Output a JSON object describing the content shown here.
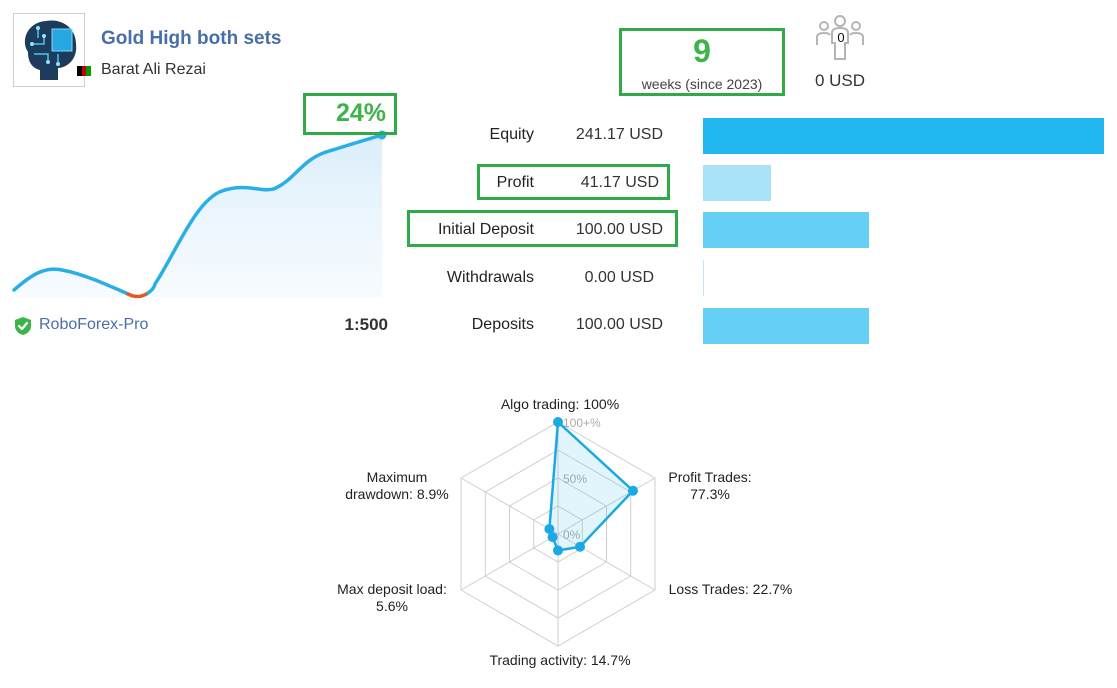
{
  "signal": {
    "title": "Gold High both sets",
    "author": "Barat Ali Rezai",
    "author_flag": "afghanistan-flag"
  },
  "weeks": {
    "value": "9",
    "caption": "weeks (since 2023)"
  },
  "subscribers": {
    "count": "0",
    "amount": "0 USD",
    "icon": "subscribers-icon"
  },
  "growth": {
    "percent_label": "24%",
    "line_color": "#29aee6",
    "drawdown_color": "#e05a2a"
  },
  "broker": {
    "name": "RoboForex-Pro",
    "leverage": "1:500",
    "icon": "verified-shield-icon"
  },
  "stats": [
    {
      "label": "Equity",
      "value": "241.17 USD",
      "amount": 241.17,
      "color": "#20b8ee",
      "highlight": false
    },
    {
      "label": "Profit",
      "value": "41.17 USD",
      "amount": 41.17,
      "color": "#a8e3f8",
      "highlight": true
    },
    {
      "label": "Initial Deposit",
      "value": "100.00 USD",
      "amount": 100.0,
      "color": "#66cff5",
      "highlight": true
    },
    {
      "label": "Withdrawals",
      "value": "0.00 USD",
      "amount": 0.0,
      "color": "#bfe9f9",
      "highlight": false
    },
    {
      "label": "Deposits",
      "value": "100.00 USD",
      "amount": 100.0,
      "color": "#66cff5",
      "highlight": false
    }
  ],
  "radar": {
    "scale_labels": [
      "100+%",
      "50%",
      "0%"
    ],
    "axes": [
      {
        "label": "Algo trading: 100%",
        "value": 100
      },
      {
        "label": "Profit Trades:\n77.3%",
        "value": 77.3
      },
      {
        "label": "Loss Trades: 22.7%",
        "value": 22.7
      },
      {
        "label": "Trading activity: 14.7%",
        "value": 14.7
      },
      {
        "label": "Max deposit load:\n5.6%",
        "value": 5.6
      },
      {
        "label": "Maximum\ndrawdown: 8.9%",
        "value": 8.9
      }
    ],
    "color": "#1aa9e3"
  },
  "colors": {
    "accent_green": "#2eaa48",
    "title_blue": "#4a6ea9"
  }
}
